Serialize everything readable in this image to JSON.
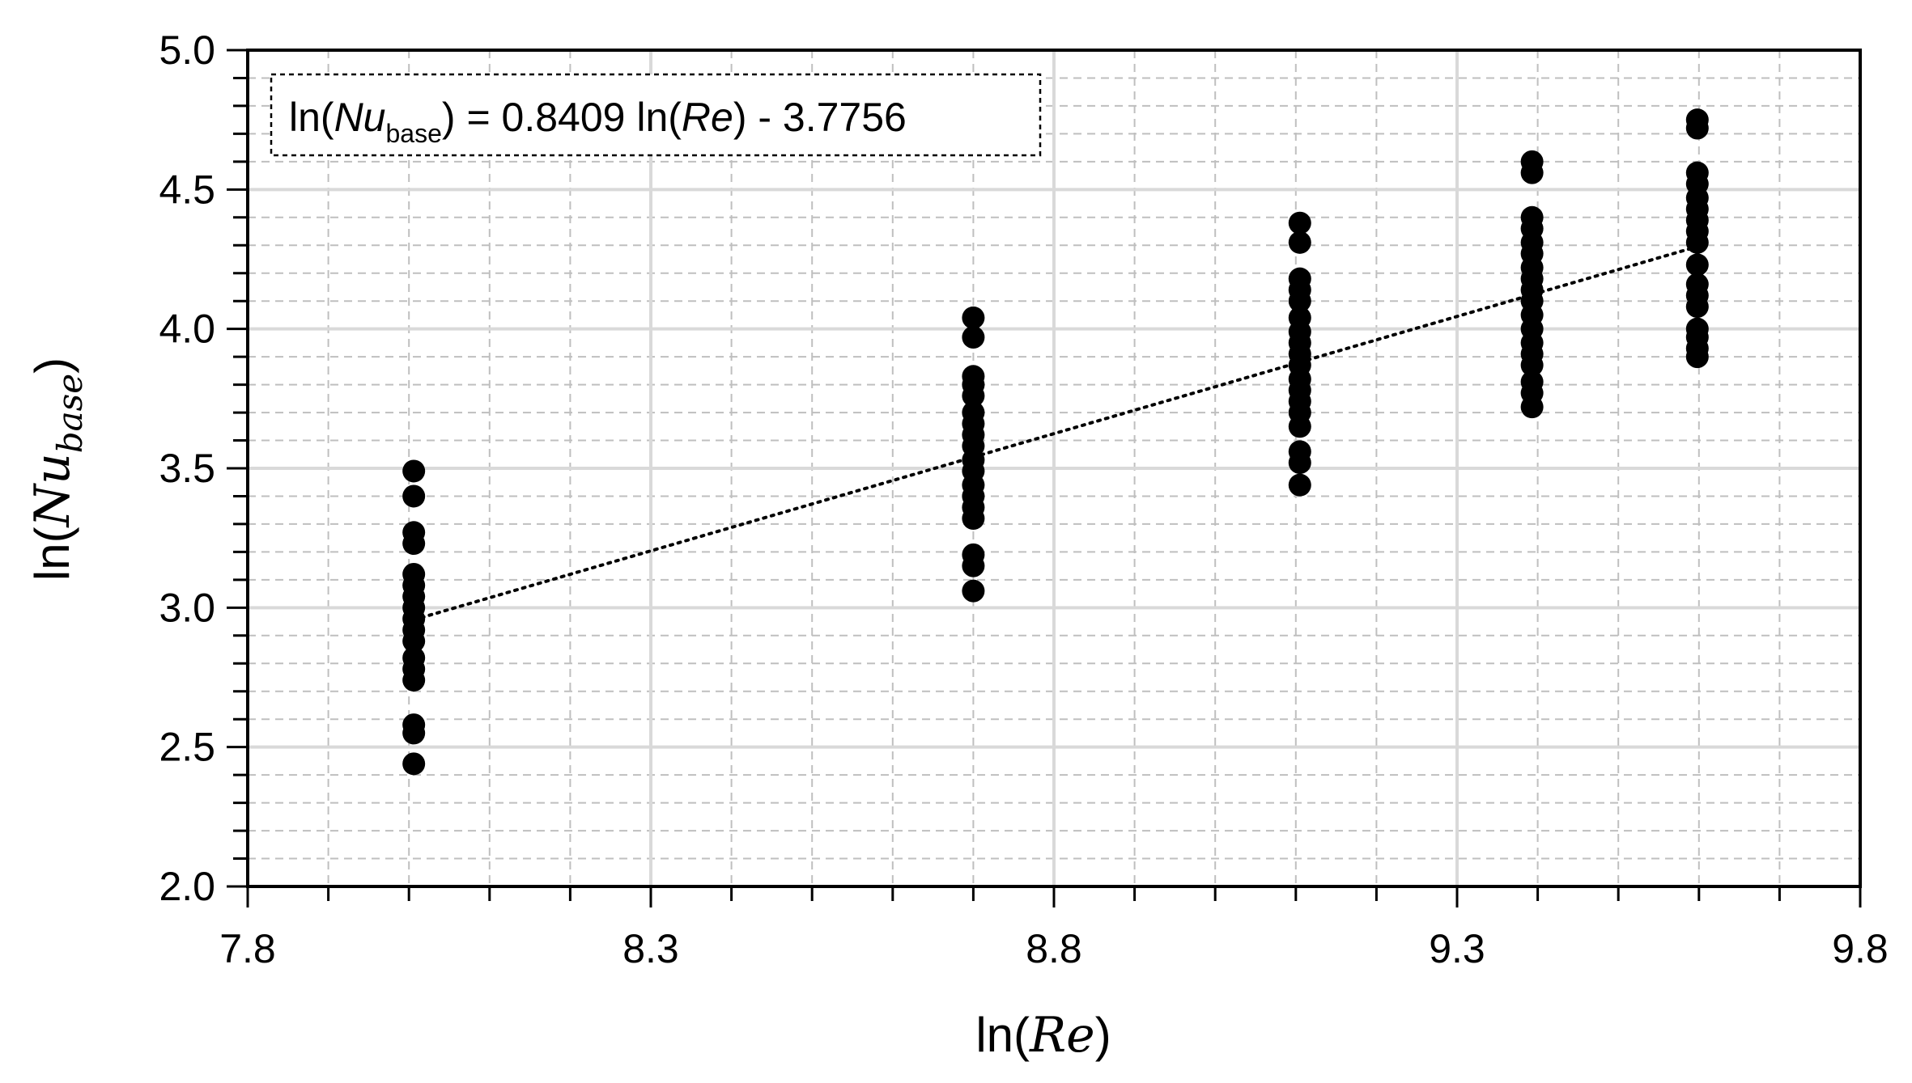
{
  "chart_data": {
    "type": "scatter",
    "x_label": {
      "prefix": "ln(",
      "var": "Re",
      "suffix": ")"
    },
    "y_label": {
      "prefix": "ln(",
      "var": "Nu",
      "sub": "base",
      "suffix": ")"
    },
    "xlim": [
      7.8,
      9.8
    ],
    "ylim": [
      2.0,
      5.0
    ],
    "x_ticks": [
      "7.8",
      "8.3",
      "8.8",
      "9.3",
      "9.8"
    ],
    "y_ticks": [
      "2.0",
      "2.5",
      "3.0",
      "3.5",
      "4.0",
      "4.5",
      "5.0"
    ],
    "x_minor_step": 0.1,
    "y_minor_step": 0.1,
    "grid": true,
    "points": [
      {
        "x": 8.006,
        "y": 3.49
      },
      {
        "x": 8.006,
        "y": 3.4
      },
      {
        "x": 8.006,
        "y": 3.27
      },
      {
        "x": 8.006,
        "y": 3.23
      },
      {
        "x": 8.006,
        "y": 3.12
      },
      {
        "x": 8.006,
        "y": 3.08
      },
      {
        "x": 8.006,
        "y": 3.04
      },
      {
        "x": 8.006,
        "y": 3.0
      },
      {
        "x": 8.006,
        "y": 2.96
      },
      {
        "x": 8.006,
        "y": 2.92
      },
      {
        "x": 8.006,
        "y": 2.88
      },
      {
        "x": 8.006,
        "y": 2.82
      },
      {
        "x": 8.006,
        "y": 2.78
      },
      {
        "x": 8.006,
        "y": 2.74
      },
      {
        "x": 8.006,
        "y": 2.58
      },
      {
        "x": 8.006,
        "y": 2.55
      },
      {
        "x": 8.006,
        "y": 2.44
      },
      {
        "x": 8.7,
        "y": 4.04
      },
      {
        "x": 8.7,
        "y": 3.97
      },
      {
        "x": 8.7,
        "y": 3.83
      },
      {
        "x": 8.7,
        "y": 3.8
      },
      {
        "x": 8.7,
        "y": 3.76
      },
      {
        "x": 8.7,
        "y": 3.7
      },
      {
        "x": 8.7,
        "y": 3.66
      },
      {
        "x": 8.7,
        "y": 3.62
      },
      {
        "x": 8.7,
        "y": 3.58
      },
      {
        "x": 8.7,
        "y": 3.53
      },
      {
        "x": 8.7,
        "y": 3.49
      },
      {
        "x": 8.7,
        "y": 3.44
      },
      {
        "x": 8.7,
        "y": 3.4
      },
      {
        "x": 8.7,
        "y": 3.36
      },
      {
        "x": 8.7,
        "y": 3.32
      },
      {
        "x": 8.7,
        "y": 3.19
      },
      {
        "x": 8.7,
        "y": 3.15
      },
      {
        "x": 8.7,
        "y": 3.06
      },
      {
        "x": 9.105,
        "y": 4.38
      },
      {
        "x": 9.105,
        "y": 4.31
      },
      {
        "x": 9.105,
        "y": 4.18
      },
      {
        "x": 9.105,
        "y": 4.14
      },
      {
        "x": 9.105,
        "y": 4.1
      },
      {
        "x": 9.105,
        "y": 4.04
      },
      {
        "x": 9.105,
        "y": 3.99
      },
      {
        "x": 9.105,
        "y": 3.95
      },
      {
        "x": 9.105,
        "y": 3.91
      },
      {
        "x": 9.105,
        "y": 3.87
      },
      {
        "x": 9.105,
        "y": 3.82
      },
      {
        "x": 9.105,
        "y": 3.78
      },
      {
        "x": 9.105,
        "y": 3.74
      },
      {
        "x": 9.105,
        "y": 3.7
      },
      {
        "x": 9.105,
        "y": 3.65
      },
      {
        "x": 9.105,
        "y": 3.56
      },
      {
        "x": 9.105,
        "y": 3.52
      },
      {
        "x": 9.105,
        "y": 3.44
      },
      {
        "x": 9.393,
        "y": 4.6
      },
      {
        "x": 9.393,
        "y": 4.56
      },
      {
        "x": 9.393,
        "y": 4.4
      },
      {
        "x": 9.393,
        "y": 4.36
      },
      {
        "x": 9.393,
        "y": 4.31
      },
      {
        "x": 9.393,
        "y": 4.27
      },
      {
        "x": 9.393,
        "y": 4.22
      },
      {
        "x": 9.393,
        "y": 4.18
      },
      {
        "x": 9.393,
        "y": 4.14
      },
      {
        "x": 9.393,
        "y": 4.1
      },
      {
        "x": 9.393,
        "y": 4.05
      },
      {
        "x": 9.393,
        "y": 4.0
      },
      {
        "x": 9.393,
        "y": 3.95
      },
      {
        "x": 9.393,
        "y": 3.91
      },
      {
        "x": 9.393,
        "y": 3.87
      },
      {
        "x": 9.393,
        "y": 3.81
      },
      {
        "x": 9.393,
        "y": 3.77
      },
      {
        "x": 9.393,
        "y": 3.72
      },
      {
        "x": 9.598,
        "y": 4.75
      },
      {
        "x": 9.598,
        "y": 4.72
      },
      {
        "x": 9.598,
        "y": 4.56
      },
      {
        "x": 9.598,
        "y": 4.52
      },
      {
        "x": 9.598,
        "y": 4.47
      },
      {
        "x": 9.598,
        "y": 4.43
      },
      {
        "x": 9.598,
        "y": 4.39
      },
      {
        "x": 9.598,
        "y": 4.35
      },
      {
        "x": 9.598,
        "y": 4.31
      },
      {
        "x": 9.598,
        "y": 4.23
      },
      {
        "x": 9.598,
        "y": 4.16
      },
      {
        "x": 9.598,
        "y": 4.12
      },
      {
        "x": 9.598,
        "y": 4.08
      },
      {
        "x": 9.598,
        "y": 4.0
      },
      {
        "x": 9.598,
        "y": 3.97
      },
      {
        "x": 9.598,
        "y": 3.93
      },
      {
        "x": 9.598,
        "y": 3.9
      }
    ],
    "trendline": {
      "slope": 0.8409,
      "intercept": -3.7756,
      "x_range": [
        8.006,
        9.598
      ],
      "style": "dotted",
      "equation": {
        "lhs_prefix": "ln(",
        "lhs_var": "Nu",
        "lhs_sub": "base",
        "lhs_suffix": ")",
        "rhs_a": " = 0.8409 ln(",
        "rhs_var": "Re",
        "rhs_b": ") - 3.7756"
      }
    },
    "colors": {
      "points": "#000000",
      "axes": "#000000",
      "major_grid": "#d9d9d9",
      "minor_grid": "#bfbfbf"
    }
  }
}
